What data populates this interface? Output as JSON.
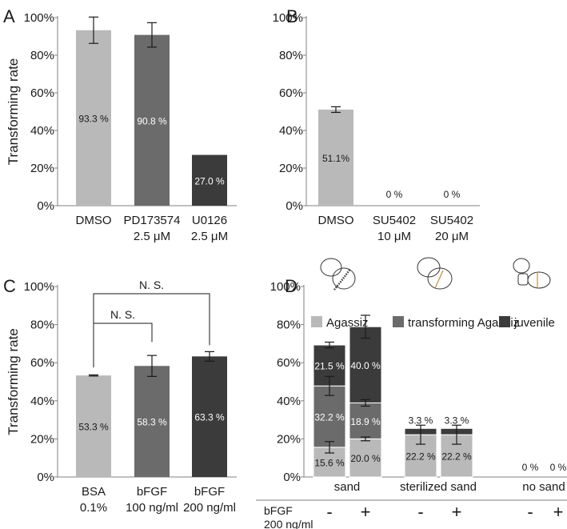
{
  "colors": {
    "light": "#b9b9b9",
    "mid": "#6b6b6b",
    "dark": "#3b3b3b",
    "axis": "#808080",
    "text": "#1a1a1a"
  },
  "chart_data": [
    {
      "panel": "A",
      "type": "bar",
      "ylabel": "Transforming rate",
      "ylim": [
        0,
        100
      ],
      "yticks": [
        "0%",
        "20%",
        "40%",
        "60%",
        "80%",
        "100%"
      ],
      "categories": [
        [
          "DMSO"
        ],
        [
          "PD173574",
          "2.5 μM"
        ],
        [
          "U0126",
          "2.5 μM"
        ]
      ],
      "values": [
        93.3,
        90.8,
        27.0
      ],
      "errors": [
        7.0,
        6.5,
        0
      ],
      "labels": [
        "93.3 %",
        "90.8 %",
        "27.0 %"
      ],
      "bar_colors": [
        "light",
        "mid",
        "dark"
      ]
    },
    {
      "panel": "B",
      "type": "bar",
      "ylabel": "",
      "ylim": [
        0,
        100
      ],
      "yticks": [
        "0%",
        "20%",
        "40%",
        "60%",
        "80%",
        "100%"
      ],
      "categories": [
        [
          "DMSO"
        ],
        [
          "SU5402",
          "10 μM"
        ],
        [
          "SU5402",
          "20 μM"
        ]
      ],
      "values": [
        51.1,
        0,
        0
      ],
      "errors": [
        1.5,
        0,
        0
      ],
      "labels": [
        "51.1%",
        "0 %",
        "0 %"
      ],
      "bar_colors": [
        "light",
        "mid",
        "dark"
      ]
    },
    {
      "panel": "C",
      "type": "bar",
      "ylabel": "Transforming rate",
      "ylim": [
        0,
        100
      ],
      "yticks": [
        "0%",
        "20%",
        "40%",
        "60%",
        "80%",
        "100%"
      ],
      "categories": [
        [
          "BSA",
          "0.1%"
        ],
        [
          "bFGF",
          "100 ng/ml"
        ],
        [
          "bFGF",
          "200 ng/ml"
        ]
      ],
      "values": [
        53.3,
        58.3,
        63.3
      ],
      "errors": [
        0.3,
        5.5,
        2.5
      ],
      "labels": [
        "53.3 %",
        "58.3 %",
        "63.3 %"
      ],
      "bar_colors": [
        "light",
        "mid",
        "dark"
      ],
      "significance": [
        {
          "from": 0,
          "to": 1,
          "label": "N. S."
        },
        {
          "from": 0,
          "to": 2,
          "label": "N. S."
        }
      ]
    },
    {
      "panel": "D",
      "type": "bar",
      "stacked": true,
      "ylabel": "",
      "ylim": [
        0,
        100
      ],
      "yticks": [
        "0%",
        "20%",
        "40%",
        "60%",
        "80%",
        "100%"
      ],
      "legend_position": "top",
      "series": [
        {
          "name": "Agassiz",
          "color": "light"
        },
        {
          "name": "transforming Agassiz",
          "color": "mid"
        },
        {
          "name": "juvenile",
          "color": "dark"
        }
      ],
      "groups": [
        "sand",
        "sterilized sand",
        "no sand"
      ],
      "treatment_label": [
        "bFGF",
        "200 ng/ml"
      ],
      "treatment_signs": [
        "-",
        "+",
        "-",
        "+",
        "-",
        "+"
      ],
      "bars": [
        {
          "group": 0,
          "segments": [
            15.6,
            32.2,
            21.5
          ],
          "errors": [
            3.0,
            5.0,
            1.5
          ],
          "labels": [
            "15.6 %",
            "32.2 %",
            "21.5 %"
          ]
        },
        {
          "group": 0,
          "segments": [
            20.0,
            18.9,
            40.0
          ],
          "errors": [
            1.0,
            1.7,
            6.0
          ],
          "labels": [
            "20.0 %",
            "18.9 %",
            "40.0 %"
          ]
        },
        {
          "group": 1,
          "segments": [
            22.2,
            0,
            3.3
          ],
          "errors": [
            5.0,
            0,
            0
          ],
          "labels": [
            "22.2 %",
            "",
            "3.3 %"
          ],
          "label_above": "3.3 %"
        },
        {
          "group": 1,
          "segments": [
            22.2,
            0,
            3.3
          ],
          "errors": [
            5.0,
            0,
            0
          ],
          "labels": [
            "22.2 %",
            "",
            "3.3 %"
          ],
          "label_above": "3.3 %"
        },
        {
          "group": 2,
          "segments": [
            0,
            0,
            0
          ],
          "errors": [
            0,
            0,
            0
          ],
          "labels": [
            "",
            "",
            ""
          ],
          "label_above": "0 %"
        },
        {
          "group": 2,
          "segments": [
            0,
            0,
            0
          ],
          "errors": [
            0,
            0,
            0
          ],
          "labels": [
            "",
            "",
            ""
          ],
          "label_above": "0 %"
        }
      ],
      "stage_icons": [
        "agassiz-larva-icon",
        "transforming-agassiz-icon",
        "juvenile-icon"
      ]
    }
  ]
}
